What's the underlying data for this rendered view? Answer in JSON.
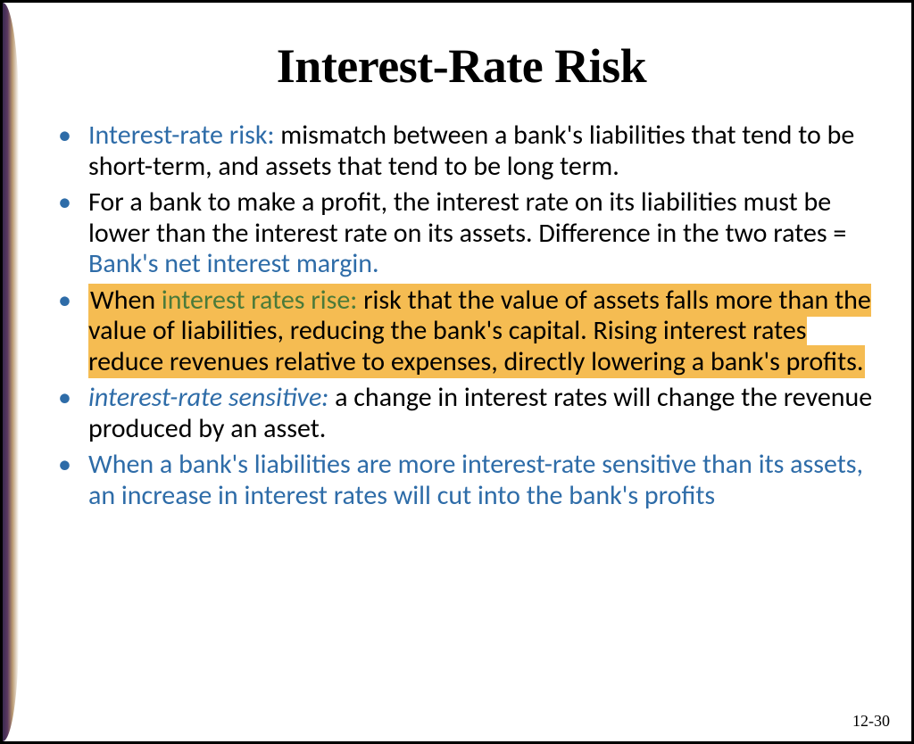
{
  "slide": {
    "title": "Interest-Rate Risk",
    "page_number": "12-30",
    "colors": {
      "bullet_marker": "#2e6ca8",
      "blue_text": "#2e6ca8",
      "green_text": "#4a7a3a",
      "highlight_bg": "#f5bc52",
      "border": "#000000",
      "background": "#ffffff"
    },
    "typography": {
      "title_font": "Garamond",
      "title_size_pt": 40,
      "title_weight": "bold",
      "body_font": "Calibri",
      "body_size_pt": 22,
      "line_height": 1.15
    },
    "bullets": {
      "b1": {
        "lead": "Interest-rate risk:",
        "body": " mismatch between a bank's liabilities that tend to be short-term, and assets that tend to be long term."
      },
      "b2": {
        "body_pre": "For a bank to make a profit, the interest rate on its liabilities must be lower than the interest rate on its assets. Difference in the two rates = ",
        "term": "Bank's net interest margin."
      },
      "b3": {
        "pre": "When ",
        "term": "interest rates rise:",
        "body": " risk that the value of assets falls more than the value of liabilities, reducing the bank's capital. Rising interest rates reduce revenues relative to expenses, directly lowering a bank's profits."
      },
      "b4": {
        "term": "interest-rate sensitive",
        "colon": ":",
        "body": " a change in interest rates will change the revenue produced by an asset."
      },
      "b5": {
        "body": "When a bank's liabilities are more interest-rate sensitive than its assets, an increase in interest rates will cut into the bank's profits"
      }
    }
  }
}
